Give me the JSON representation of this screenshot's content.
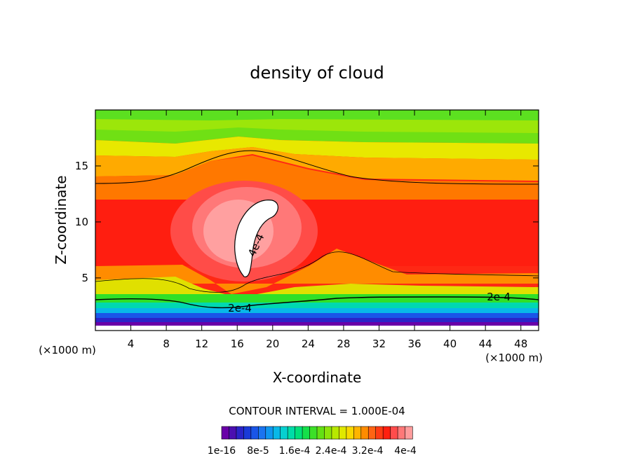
{
  "chart_data": {
    "type": "heatmap",
    "title": "density of cloud",
    "xlabel": "X-coordinate",
    "ylabel": "Z-coordinate",
    "x_unit_left": "(×1000 m)",
    "x_unit_right": "(×1000 m)",
    "xlim": [
      0,
      50
    ],
    "ylim": [
      0.3,
      20
    ],
    "x_ticks": [
      4,
      8,
      12,
      16,
      20,
      24,
      28,
      32,
      36,
      40,
      44,
      48
    ],
    "x_tick_labels": [
      "4",
      "8",
      "12",
      "16",
      "20",
      "24",
      "28",
      "32",
      "36",
      "40",
      "44",
      "48"
    ],
    "y_ticks": [
      5,
      10,
      15
    ],
    "y_tick_labels": [
      "5",
      "10",
      "15"
    ],
    "contour_interval_text": "CONTOUR INTERVAL = 1.000E-04",
    "contour_labels": [
      {
        "text": "4e-4",
        "x": 18.5,
        "z": 7.8
      },
      {
        "text": "2e-4",
        "x": 16.3,
        "z": 2.0
      },
      {
        "text": "2e-4",
        "x": 45.5,
        "z": 3.0
      }
    ],
    "colorbar": {
      "min": 1e-16,
      "max": 0.00044,
      "tick_labels": [
        "1e-16",
        "8e-5",
        "1.6e-4",
        "2.4e-4",
        "3.2e-4",
        "4e-4"
      ],
      "colors": [
        "#6a00a8",
        "#4b0fb0",
        "#2a24c8",
        "#1a3ad8",
        "#1a55e8",
        "#1a74f0",
        "#0f96f0",
        "#08b8e8",
        "#06d0d0",
        "#00dca8",
        "#00e07a",
        "#14e04a",
        "#3ce028",
        "#64e014",
        "#8ce40a",
        "#b8e800",
        "#e0e800",
        "#f8d800",
        "#ffb400",
        "#ff8c00",
        "#ff6414",
        "#ff3c14",
        "#ff2010",
        "#ff4c4c",
        "#ff7878",
        "#ff9c9c"
      ]
    }
  }
}
